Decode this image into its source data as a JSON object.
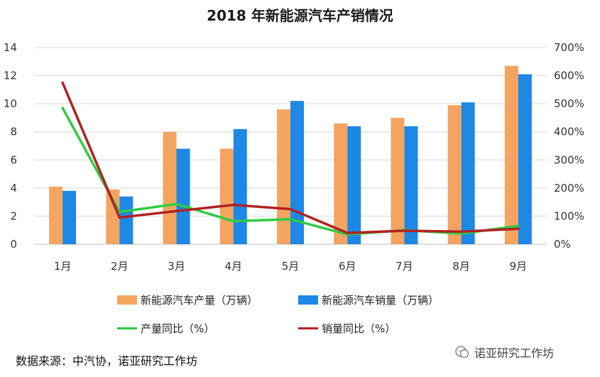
{
  "chart_data": {
    "type": "bar",
    "title": "2018 年新能源汽车产销情况",
    "categories": [
      "1月",
      "2月",
      "3月",
      "4月",
      "5月",
      "6月",
      "7月",
      "8月",
      "9月"
    ],
    "series": [
      {
        "name": "新能源汽车产量（万辆）",
        "kind": "bar",
        "axis": "left",
        "color": "#F4A460",
        "values": [
          4.1,
          3.9,
          8.0,
          6.8,
          9.6,
          8.6,
          9.0,
          9.9,
          12.7
        ]
      },
      {
        "name": "新能源汽车销量（万辆）",
        "kind": "bar",
        "axis": "left",
        "color": "#1E88E5",
        "values": [
          3.8,
          3.4,
          6.8,
          8.2,
          10.2,
          8.4,
          8.4,
          10.1,
          12.1
        ]
      },
      {
        "name": "产量同比（%）",
        "kind": "line",
        "axis": "right",
        "color": "#2ECC40",
        "values": [
          485,
          115,
          143,
          82,
          89,
          35,
          50,
          38,
          65
        ]
      },
      {
        "name": "销量同比（%）",
        "kind": "line",
        "axis": "right",
        "color": "#B22222",
        "values": [
          575,
          95,
          118,
          140,
          125,
          40,
          48,
          45,
          55
        ]
      }
    ],
    "y_left": {
      "min": 0,
      "max": 14,
      "ticks": [
        "0",
        "2",
        "4",
        "6",
        "8",
        "10",
        "12",
        "14"
      ]
    },
    "y_right": {
      "min": 0,
      "max": 700,
      "ticks": [
        "0%",
        "100%",
        "200%",
        "300%",
        "400%",
        "500%",
        "600%",
        "700%"
      ]
    },
    "grid": true,
    "legend_position": "bottom"
  },
  "source_note": "数据来源：中汽协，诺亚研究工作坊",
  "watermark": "诺亚研究工作坊"
}
